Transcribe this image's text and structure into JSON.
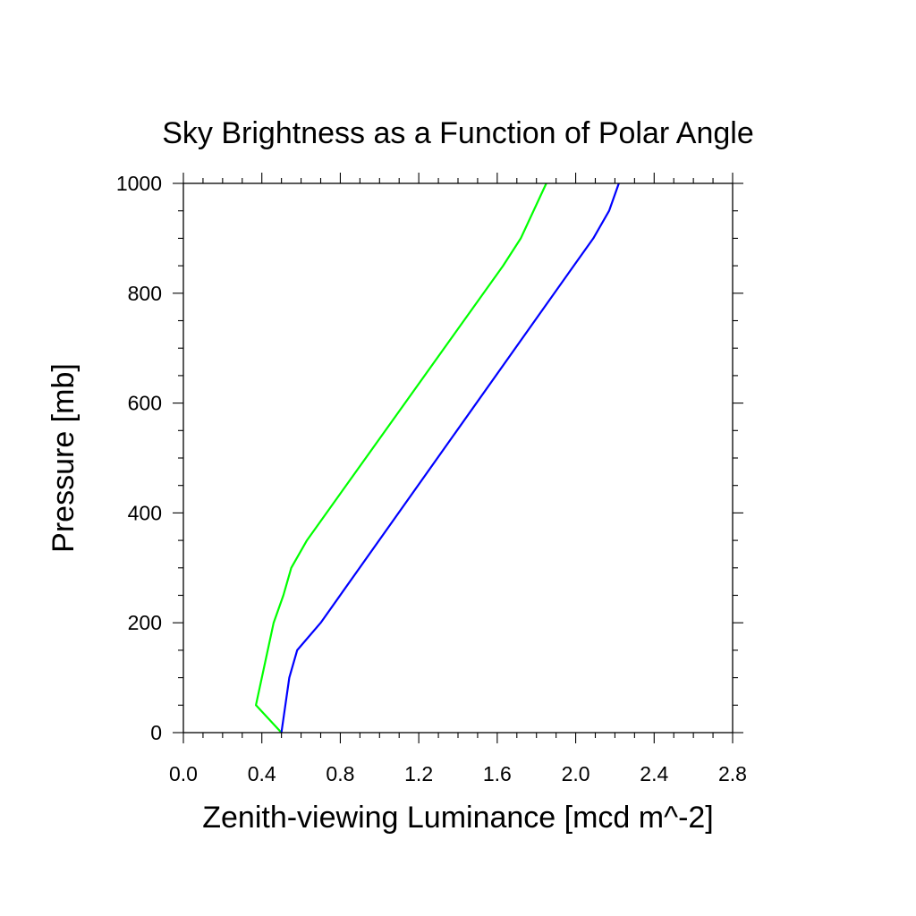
{
  "chart_data": {
    "type": "line",
    "title": "Sky Brightness as a Function of Polar Angle",
    "xlabel": "Zenith-viewing Luminance [mcd m^-2]",
    "ylabel": "Pressure [mb]",
    "xlim": [
      0.0,
      2.8
    ],
    "ylim": [
      0,
      1000
    ],
    "x_ticks": [
      "0.0",
      "0.4",
      "0.8",
      "1.2",
      "1.6",
      "2.0",
      "2.4",
      "2.8"
    ],
    "y_ticks": [
      "0",
      "200",
      "400",
      "600",
      "800",
      "1000"
    ],
    "x_tick_values": [
      0.0,
      0.4,
      0.8,
      1.2,
      1.6,
      2.0,
      2.4,
      2.8
    ],
    "y_tick_values": [
      0,
      200,
      400,
      600,
      800,
      1000
    ],
    "grid": false,
    "series": [
      {
        "color": "#00ff00",
        "points": [
          {
            "x": 0.5,
            "y": 0
          },
          {
            "x": 0.37,
            "y": 50
          },
          {
            "x": 0.46,
            "y": 200
          },
          {
            "x": 0.51,
            "y": 250
          },
          {
            "x": 0.55,
            "y": 300
          },
          {
            "x": 0.63,
            "y": 350
          },
          {
            "x": 1.63,
            "y": 850
          },
          {
            "x": 1.72,
            "y": 900
          },
          {
            "x": 1.85,
            "y": 1000
          }
        ]
      },
      {
        "color": "#0000ff",
        "points": [
          {
            "x": 0.5,
            "y": 0
          },
          {
            "x": 0.54,
            "y": 100
          },
          {
            "x": 0.58,
            "y": 150
          },
          {
            "x": 0.7,
            "y": 200
          },
          {
            "x": 1.99,
            "y": 850
          },
          {
            "x": 2.09,
            "y": 900
          },
          {
            "x": 2.17,
            "y": 950
          },
          {
            "x": 2.22,
            "y": 1000
          }
        ]
      }
    ]
  }
}
